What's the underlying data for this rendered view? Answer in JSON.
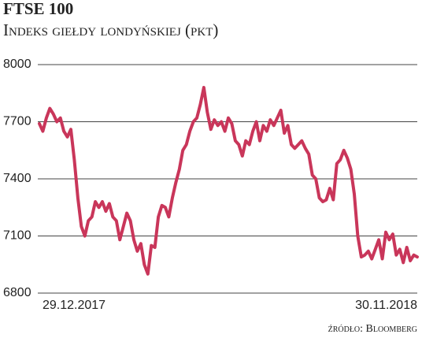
{
  "chart_data": {
    "type": "line",
    "title": "FTSE 100",
    "subtitle": "Indeks giełdy londyńskiej (pkt)",
    "source": "źródło: Bloomberg",
    "categories": [
      "29.12.2017",
      null,
      null,
      null,
      null,
      null,
      null,
      null,
      null,
      null,
      null,
      null,
      null,
      null,
      null,
      null,
      null,
      null,
      null,
      null,
      null,
      null,
      null,
      null,
      null,
      null,
      null,
      null,
      null,
      null,
      null,
      null,
      null,
      null,
      null,
      null,
      null,
      null,
      null,
      null,
      null,
      null,
      null,
      null,
      null,
      null,
      null,
      null,
      null,
      null,
      null,
      null,
      null,
      null,
      null,
      null,
      null,
      null,
      null,
      null,
      null,
      null,
      null,
      null,
      null,
      null,
      null,
      null,
      null,
      null,
      null,
      null,
      null,
      null,
      null,
      null,
      null,
      null,
      null,
      null,
      null,
      null,
      null,
      null,
      null,
      null,
      null,
      null,
      null,
      null,
      null,
      null,
      null,
      null,
      null,
      null,
      null,
      null,
      null,
      null,
      null,
      null,
      null,
      null,
      null,
      null,
      null,
      null,
      "30.11.2018"
    ],
    "values": [
      7690,
      7650,
      7720,
      7770,
      7740,
      7700,
      7720,
      7650,
      7620,
      7660,
      7500,
      7300,
      7150,
      7100,
      7180,
      7200,
      7280,
      7250,
      7280,
      7230,
      7270,
      7200,
      7180,
      7080,
      7150,
      7220,
      7180,
      7080,
      7020,
      7060,
      6950,
      6900,
      7050,
      7040,
      7200,
      7260,
      7250,
      7200,
      7300,
      7380,
      7450,
      7550,
      7580,
      7650,
      7700,
      7720,
      7790,
      7880,
      7750,
      7660,
      7710,
      7680,
      7700,
      7650,
      7720,
      7690,
      7600,
      7580,
      7520,
      7600,
      7580,
      7650,
      7700,
      7600,
      7680,
      7650,
      7710,
      7680,
      7720,
      7760,
      7640,
      7680,
      7580,
      7560,
      7580,
      7600,
      7560,
      7530,
      7420,
      7400,
      7300,
      7280,
      7290,
      7350,
      7290,
      7480,
      7500,
      7550,
      7510,
      7450,
      7320,
      7100,
      6990,
      7000,
      7020,
      6980,
      7030,
      7080,
      6980,
      7120,
      7080,
      7110,
      7000,
      7030,
      6960,
      7040,
      6970,
      7000,
      6990
    ],
    "color": "#c9365a",
    "ylim": [
      6800,
      8000
    ],
    "yticks": [
      6800,
      7100,
      7400,
      7700,
      8000
    ],
    "grid": true
  }
}
